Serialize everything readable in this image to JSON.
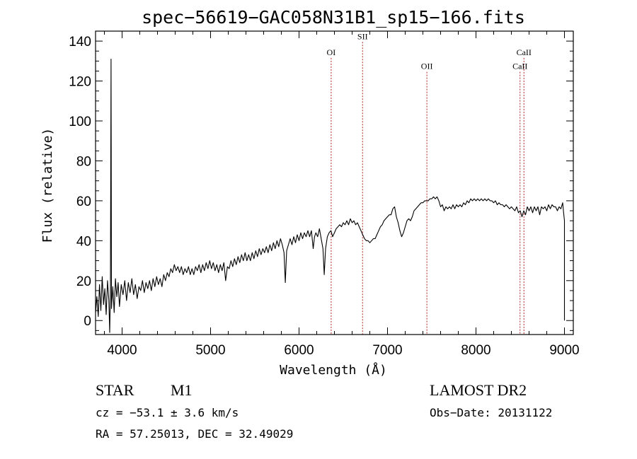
{
  "chart_data": {
    "type": "line",
    "title": "spec−56619−GAC058N31B1_sp15−166.fits",
    "xlabel": "Wavelength (Å)",
    "ylabel": "Flux (relative)",
    "xlim": [
      3700,
      9100
    ],
    "ylim": [
      -7,
      145
    ],
    "x_ticks": [
      4000,
      5000,
      6000,
      7000,
      8000,
      9000
    ],
    "y_ticks": [
      0,
      20,
      40,
      60,
      80,
      100,
      120,
      140
    ],
    "grid": false,
    "line_color": "#000000",
    "marker_color": "#b22222",
    "series": [
      {
        "values": [
          [
            3700,
            4
          ],
          [
            3715,
            12
          ],
          [
            3730,
            2
          ],
          [
            3745,
            18
          ],
          [
            3760,
            5
          ],
          [
            3775,
            22
          ],
          [
            3790,
            8
          ],
          [
            3805,
            16
          ],
          [
            3820,
            3
          ],
          [
            3835,
            20
          ],
          [
            3850,
            10
          ],
          [
            3860,
            -6
          ],
          [
            3868,
            14
          ],
          [
            3875,
            131
          ],
          [
            3880,
            6
          ],
          [
            3895,
            17
          ],
          [
            3910,
            4
          ],
          [
            3925,
            21
          ],
          [
            3940,
            12
          ],
          [
            3955,
            19
          ],
          [
            3970,
            7
          ],
          [
            3990,
            18
          ],
          [
            4010,
            13
          ],
          [
            4030,
            20
          ],
          [
            4050,
            10
          ],
          [
            4070,
            19
          ],
          [
            4090,
            14
          ],
          [
            4110,
            21
          ],
          [
            4130,
            13
          ],
          [
            4150,
            18
          ],
          [
            4170,
            11
          ],
          [
            4190,
            17
          ],
          [
            4210,
            15
          ],
          [
            4230,
            20
          ],
          [
            4250,
            14
          ],
          [
            4270,
            19
          ],
          [
            4290,
            16
          ],
          [
            4310,
            20
          ],
          [
            4330,
            15
          ],
          [
            4350,
            21
          ],
          [
            4370,
            17
          ],
          [
            4390,
            22
          ],
          [
            4410,
            18
          ],
          [
            4430,
            21
          ],
          [
            4450,
            17
          ],
          [
            4470,
            23
          ],
          [
            4490,
            20
          ],
          [
            4510,
            24
          ],
          [
            4530,
            22
          ],
          [
            4550,
            26
          ],
          [
            4570,
            24
          ],
          [
            4590,
            28
          ],
          [
            4610,
            25
          ],
          [
            4630,
            27
          ],
          [
            4650,
            24
          ],
          [
            4670,
            27
          ],
          [
            4690,
            23
          ],
          [
            4710,
            26
          ],
          [
            4730,
            24
          ],
          [
            4750,
            27
          ],
          [
            4770,
            23
          ],
          [
            4790,
            26
          ],
          [
            4810,
            23
          ],
          [
            4830,
            27
          ],
          [
            4850,
            25
          ],
          [
            4870,
            28
          ],
          [
            4890,
            24
          ],
          [
            4910,
            28
          ],
          [
            4930,
            25
          ],
          [
            4950,
            29
          ],
          [
            4970,
            26
          ],
          [
            4990,
            30
          ],
          [
            5010,
            26
          ],
          [
            5030,
            29
          ],
          [
            5050,
            25
          ],
          [
            5070,
            28
          ],
          [
            5090,
            24
          ],
          [
            5110,
            28
          ],
          [
            5130,
            25
          ],
          [
            5150,
            29
          ],
          [
            5170,
            20
          ],
          [
            5190,
            27
          ],
          [
            5210,
            26
          ],
          [
            5230,
            30
          ],
          [
            5250,
            27
          ],
          [
            5270,
            31
          ],
          [
            5290,
            28
          ],
          [
            5310,
            32
          ],
          [
            5330,
            29
          ],
          [
            5350,
            33
          ],
          [
            5370,
            30
          ],
          [
            5390,
            34
          ],
          [
            5410,
            30
          ],
          [
            5430,
            33
          ],
          [
            5450,
            30
          ],
          [
            5470,
            34
          ],
          [
            5490,
            31
          ],
          [
            5510,
            35
          ],
          [
            5530,
            32
          ],
          [
            5550,
            36
          ],
          [
            5570,
            33
          ],
          [
            5590,
            36
          ],
          [
            5610,
            34
          ],
          [
            5630,
            37
          ],
          [
            5650,
            34
          ],
          [
            5670,
            38
          ],
          [
            5690,
            35
          ],
          [
            5710,
            39
          ],
          [
            5730,
            36
          ],
          [
            5750,
            40
          ],
          [
            5770,
            37
          ],
          [
            5790,
            41
          ],
          [
            5810,
            38
          ],
          [
            5830,
            34
          ],
          [
            5845,
            19
          ],
          [
            5860,
            35
          ],
          [
            5880,
            38
          ],
          [
            5900,
            41
          ],
          [
            5920,
            38
          ],
          [
            5940,
            42
          ],
          [
            5960,
            39
          ],
          [
            5980,
            43
          ],
          [
            6000,
            40
          ],
          [
            6020,
            44
          ],
          [
            6040,
            41
          ],
          [
            6060,
            44
          ],
          [
            6080,
            42
          ],
          [
            6100,
            45
          ],
          [
            6120,
            42
          ],
          [
            6140,
            45
          ],
          [
            6160,
            36
          ],
          [
            6175,
            42
          ],
          [
            6190,
            44
          ],
          [
            6210,
            42
          ],
          [
            6230,
            46
          ],
          [
            6250,
            41
          ],
          [
            6270,
            36
          ],
          [
            6285,
            23
          ],
          [
            6300,
            36
          ],
          [
            6320,
            42
          ],
          [
            6340,
            44
          ],
          [
            6360,
            45
          ],
          [
            6380,
            42
          ],
          [
            6400,
            44
          ],
          [
            6420,
            46
          ],
          [
            6440,
            47
          ],
          [
            6460,
            48
          ],
          [
            6480,
            47
          ],
          [
            6500,
            49
          ],
          [
            6520,
            48
          ],
          [
            6540,
            50
          ],
          [
            6560,
            48
          ],
          [
            6580,
            51
          ],
          [
            6600,
            49
          ],
          [
            6620,
            50
          ],
          [
            6640,
            48
          ],
          [
            6660,
            49
          ],
          [
            6680,
            47
          ],
          [
            6700,
            45
          ],
          [
            6720,
            43
          ],
          [
            6740,
            41
          ],
          [
            6760,
            40
          ],
          [
            6780,
            40
          ],
          [
            6800,
            39
          ],
          [
            6820,
            40
          ],
          [
            6840,
            41
          ],
          [
            6860,
            41
          ],
          [
            6880,
            43
          ],
          [
            6900,
            45
          ],
          [
            6920,
            47
          ],
          [
            6940,
            48
          ],
          [
            6960,
            50
          ],
          [
            6980,
            51
          ],
          [
            7000,
            52
          ],
          [
            7020,
            53
          ],
          [
            7040,
            53
          ],
          [
            7060,
            56
          ],
          [
            7080,
            57
          ],
          [
            7100,
            52
          ],
          [
            7120,
            49
          ],
          [
            7140,
            45
          ],
          [
            7160,
            42
          ],
          [
            7180,
            44
          ],
          [
            7200,
            47
          ],
          [
            7220,
            50
          ],
          [
            7240,
            51
          ],
          [
            7260,
            50
          ],
          [
            7280,
            52
          ],
          [
            7300,
            55
          ],
          [
            7320,
            56
          ],
          [
            7340,
            57
          ],
          [
            7360,
            58
          ],
          [
            7380,
            59
          ],
          [
            7400,
            59
          ],
          [
            7420,
            60
          ],
          [
            7440,
            60
          ],
          [
            7460,
            60
          ],
          [
            7480,
            61
          ],
          [
            7500,
            61
          ],
          [
            7520,
            62
          ],
          [
            7540,
            61
          ],
          [
            7560,
            62
          ],
          [
            7580,
            60
          ],
          [
            7600,
            57
          ],
          [
            7620,
            58
          ],
          [
            7640,
            55
          ],
          [
            7660,
            57
          ],
          [
            7680,
            56
          ],
          [
            7700,
            57
          ],
          [
            7720,
            56
          ],
          [
            7740,
            58
          ],
          [
            7760,
            56
          ],
          [
            7780,
            58
          ],
          [
            7800,
            57
          ],
          [
            7820,
            58
          ],
          [
            7840,
            57
          ],
          [
            7860,
            59
          ],
          [
            7880,
            58
          ],
          [
            7900,
            60
          ],
          [
            7920,
            59
          ],
          [
            7940,
            61
          ],
          [
            7960,
            60
          ],
          [
            7980,
            61
          ],
          [
            8000,
            60
          ],
          [
            8020,
            61
          ],
          [
            8040,
            60
          ],
          [
            8060,
            61
          ],
          [
            8080,
            60
          ],
          [
            8100,
            61
          ],
          [
            8120,
            60
          ],
          [
            8140,
            61
          ],
          [
            8160,
            60
          ],
          [
            8180,
            60
          ],
          [
            8200,
            59
          ],
          [
            8220,
            60
          ],
          [
            8240,
            58
          ],
          [
            8260,
            59
          ],
          [
            8280,
            58
          ],
          [
            8300,
            58
          ],
          [
            8320,
            57
          ],
          [
            8340,
            58
          ],
          [
            8360,
            57
          ],
          [
            8380,
            56
          ],
          [
            8400,
            57
          ],
          [
            8420,
            56
          ],
          [
            8440,
            55
          ],
          [
            8460,
            57
          ],
          [
            8480,
            54
          ],
          [
            8500,
            55
          ],
          [
            8520,
            52
          ],
          [
            8540,
            55
          ],
          [
            8560,
            53
          ],
          [
            8580,
            57
          ],
          [
            8600,
            55
          ],
          [
            8620,
            57
          ],
          [
            8640,
            54
          ],
          [
            8660,
            57
          ],
          [
            8680,
            55
          ],
          [
            8700,
            57
          ],
          [
            8720,
            53
          ],
          [
            8740,
            57
          ],
          [
            8760,
            56
          ],
          [
            8780,
            57
          ],
          [
            8800,
            55
          ],
          [
            8820,
            58
          ],
          [
            8840,
            56
          ],
          [
            8860,
            58
          ],
          [
            8880,
            57
          ],
          [
            8900,
            57
          ],
          [
            8920,
            55
          ],
          [
            8940,
            57
          ],
          [
            8960,
            56
          ],
          [
            8980,
            59
          ],
          [
            8990,
            54
          ],
          [
            9000,
            50
          ],
          [
            9000,
            0
          ]
        ]
      }
    ],
    "line_markers": [
      {
        "label": "OI",
        "x": 6363,
        "label_y": 133
      },
      {
        "label": "SII",
        "x": 6718,
        "label_y": 141
      },
      {
        "label": "OII",
        "x": 7445,
        "label_y": 126
      },
      {
        "label": "CaII",
        "x": 8542,
        "label_y": 133
      },
      {
        "label": "CaII",
        "x": 8498,
        "label_y": 126
      }
    ]
  },
  "info": {
    "object_class": "STAR",
    "subclass": "M1",
    "survey": "LAMOST DR2",
    "redshift_line": "cz = −53.1 ± 3.6 km/s",
    "obs_date_line": "Obs−Date: 20131122",
    "coord_line": "RA =  57.25013, DEC =  32.49029"
  }
}
